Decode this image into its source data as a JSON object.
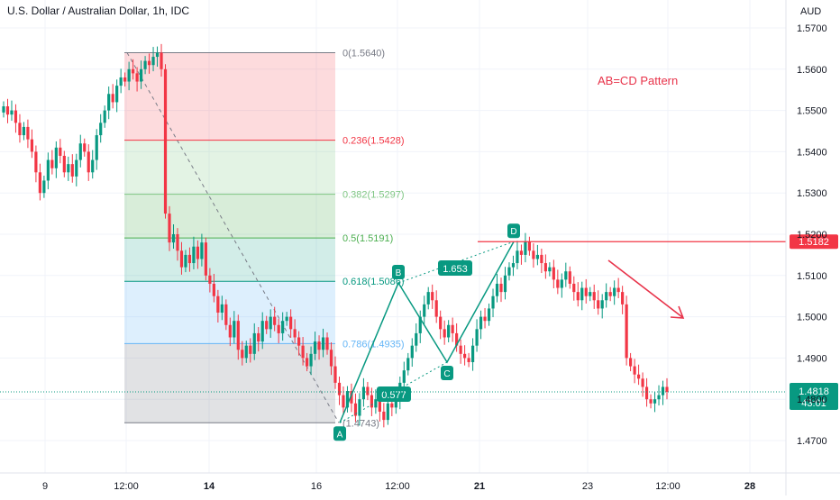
{
  "header": {
    "title": "U.S. Dollar / Australian Dollar, 1h, IDC",
    "currency": "AUD"
  },
  "annotation": {
    "text": "AB=CD Pattern",
    "color": "#e8334a"
  },
  "colors": {
    "up": "#089981",
    "down": "#f23645",
    "resistance": "#f23645",
    "arrow": "#e8334a",
    "pattern": "#089981",
    "grid": "#f0f3fa"
  },
  "badges": {
    "resistance_price": "1.5182",
    "last_price": "1.4818",
    "countdown": "43:01"
  },
  "chart_data": {
    "type": "candlestick",
    "y_axis": {
      "ticks": [
        "1.5700",
        "1.5600",
        "1.5500",
        "1.5400",
        "1.5300",
        "1.5200",
        "1.5100",
        "1.5000",
        "1.4900",
        "1.4800",
        "1.4700"
      ],
      "ylim": [
        1.464,
        1.578
      ]
    },
    "x_axis": {
      "ticks": [
        {
          "label": "9",
          "bold": false
        },
        {
          "label": "12:00",
          "bold": false
        },
        {
          "label": "14",
          "bold": true
        },
        {
          "label": "16",
          "bold": false
        },
        {
          "label": "12:00",
          "bold": false
        },
        {
          "label": "21",
          "bold": true
        },
        {
          "label": "23",
          "bold": false
        },
        {
          "label": "12:00",
          "bold": false
        },
        {
          "label": "28",
          "bold": true
        }
      ]
    },
    "fibonacci": [
      {
        "label": "0(1.5640)",
        "level": 0,
        "price": 1.564,
        "color": "#787b86",
        "fill": "rgba(242,54,69,0.18)"
      },
      {
        "label": "0.236(1.5428)",
        "level": 0.236,
        "price": 1.5428,
        "color": "#f23645",
        "fill": "rgba(129,199,132,0.22)"
      },
      {
        "label": "0.382(1.5297)",
        "level": 0.382,
        "price": 1.5297,
        "color": "#81c784",
        "fill": "rgba(76,175,80,0.22)"
      },
      {
        "label": "0.5(1.5191)",
        "level": 0.5,
        "price": 1.5191,
        "color": "#4caf50",
        "fill": "rgba(8,153,129,0.18)"
      },
      {
        "label": "0.618(1.5086)",
        "level": 0.618,
        "price": 1.5086,
        "color": "#089981",
        "fill": "rgba(100,181,246,0.22)"
      },
      {
        "label": "0.786(1.4935)",
        "level": 0.786,
        "price": 1.4935,
        "color": "#64b5f6",
        "fill": "rgba(120,123,134,0.22)"
      },
      {
        "label": "(1.4743)",
        "level": 1,
        "price": 1.4743,
        "color": "#787b86",
        "fill": null
      }
    ],
    "pattern": {
      "points": [
        {
          "label": "A",
          "price": 1.4743
        },
        {
          "label": "B",
          "price": 1.5082
        },
        {
          "label": "C",
          "price": 1.489
        },
        {
          "label": "D",
          "price": 1.5182
        }
      ],
      "ratios": [
        "0.577",
        "1.653"
      ]
    },
    "resistance_price": 1.5182,
    "last_price": 1.4818,
    "series": [
      {
        "name": "ohlc",
        "closes": [
          1.551,
          1.549,
          1.55,
          1.547,
          1.544,
          1.546,
          1.543,
          1.54,
          1.535,
          1.53,
          1.533,
          1.538,
          1.536,
          1.541,
          1.539,
          1.535,
          1.537,
          1.534,
          1.538,
          1.542,
          1.54,
          1.535,
          1.538,
          1.544,
          1.547,
          1.55,
          1.554,
          1.552,
          1.556,
          1.558,
          1.557,
          1.56,
          1.559,
          1.557,
          1.56,
          1.562,
          1.561,
          1.563,
          1.564,
          1.56,
          1.525,
          1.518,
          1.52,
          1.516,
          1.512,
          1.515,
          1.513,
          1.517,
          1.514,
          1.518,
          1.51,
          1.508,
          1.505,
          1.501,
          1.503,
          1.498,
          1.495,
          1.499,
          1.492,
          1.49,
          1.493,
          1.491,
          1.496,
          1.494,
          1.499,
          1.497,
          1.5,
          1.498,
          1.496,
          1.499,
          1.5,
          1.497,
          1.495,
          1.493,
          1.49,
          1.488,
          1.491,
          1.494,
          1.492,
          1.495,
          1.492,
          1.488,
          1.484,
          1.481,
          1.478,
          1.482,
          1.479,
          1.476,
          1.48,
          1.483,
          1.481,
          1.478,
          1.48,
          1.477,
          1.475,
          1.479,
          1.478,
          1.48,
          1.484,
          1.487,
          1.49,
          1.493,
          1.496,
          1.5,
          1.503,
          1.506,
          1.504,
          1.5,
          1.497,
          1.495,
          1.498,
          1.496,
          1.493,
          1.491,
          1.49,
          1.489,
          1.493,
          1.497,
          1.5,
          1.499,
          1.502,
          1.505,
          1.508,
          1.506,
          1.51,
          1.512,
          1.513,
          1.516,
          1.515,
          1.5182,
          1.516,
          1.514,
          1.515,
          1.513,
          1.511,
          1.512,
          1.509,
          1.507,
          1.509,
          1.511,
          1.508,
          1.506,
          1.504,
          1.507,
          1.505,
          1.506,
          1.504,
          1.502,
          1.504,
          1.506,
          1.505,
          1.507,
          1.506,
          1.503,
          1.49,
          1.488,
          1.486,
          1.485,
          1.483,
          1.48,
          1.479,
          1.48,
          1.481,
          1.483,
          1.4818
        ]
      }
    ]
  }
}
